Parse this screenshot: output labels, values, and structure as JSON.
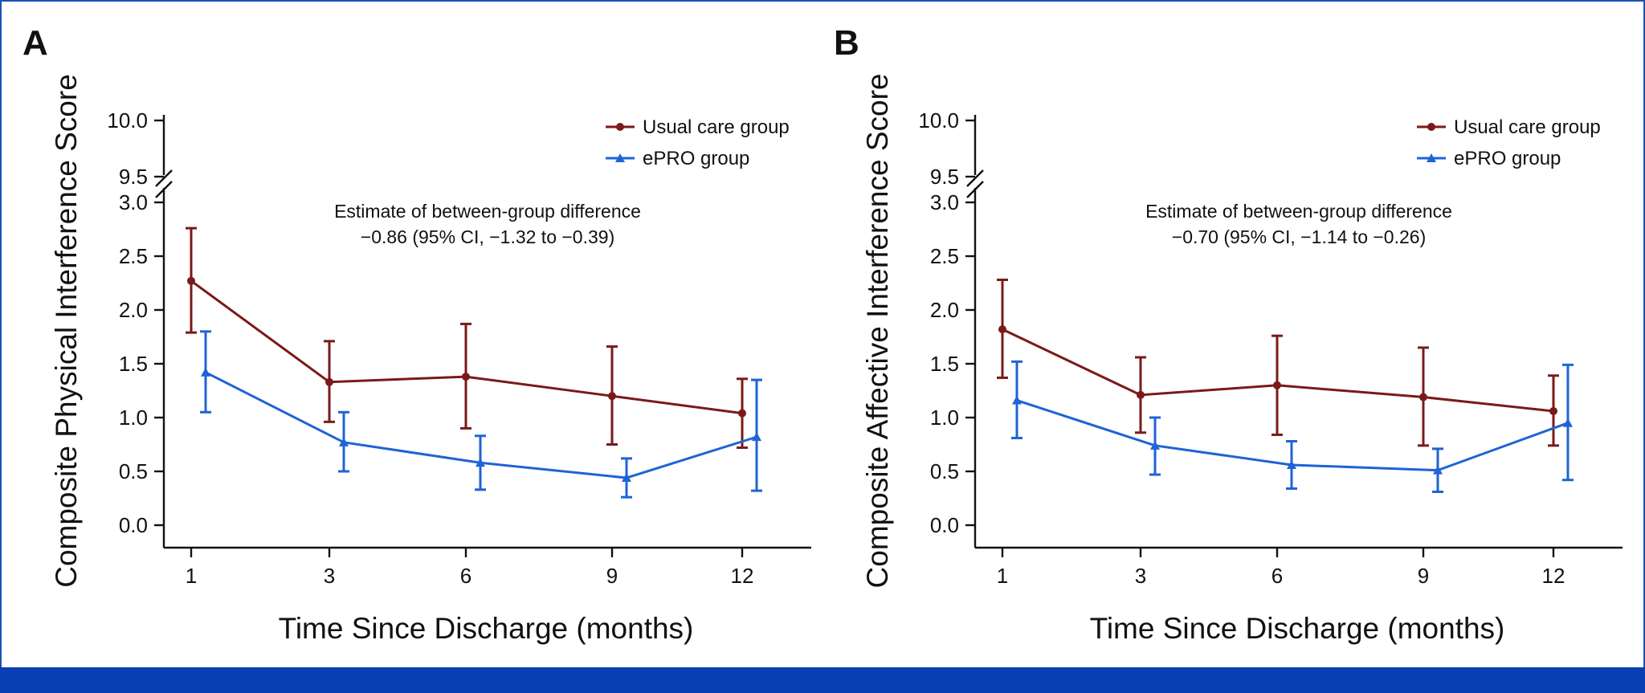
{
  "chart_data": [
    {
      "type": "line",
      "panel_label": "A",
      "ylabel": "Composite Physical Interference Score",
      "xlabel": "Time Since Discharge (months)",
      "x": [
        1,
        3,
        6,
        9,
        12
      ],
      "x_tick_labels": [
        "1",
        "3",
        "6",
        "9",
        "12"
      ],
      "y_tick_labels_lower": [
        "0.0",
        "0.5",
        "1.0",
        "1.5",
        "2.0",
        "2.5",
        "3.0"
      ],
      "y_tick_labels_upper": [
        "9.5",
        "10.0"
      ],
      "ylim": [
        0,
        10
      ],
      "axis_break": [
        3.0,
        9.5
      ],
      "legend_position": "top-right",
      "annotation": [
        "Estimate of between-group difference",
        "−0.86 (95% CI, −1.32 to −0.39)"
      ],
      "series": [
        {
          "name": "Usual care group",
          "color": "#7a1a1a",
          "marker": "circle",
          "values": [
            2.27,
            1.33,
            1.38,
            1.2,
            1.04
          ],
          "ci_low": [
            1.79,
            0.96,
            0.9,
            0.75,
            0.72
          ],
          "ci_high": [
            2.76,
            1.71,
            1.87,
            1.66,
            1.36
          ]
        },
        {
          "name": "ePRO group",
          "color": "#1f63d6",
          "marker": "triangle",
          "values": [
            1.42,
            0.77,
            0.58,
            0.44,
            0.82
          ],
          "ci_low": [
            1.05,
            0.5,
            0.33,
            0.26,
            0.32
          ],
          "ci_high": [
            1.8,
            1.05,
            0.83,
            0.62,
            1.35
          ]
        }
      ]
    },
    {
      "type": "line",
      "panel_label": "B",
      "ylabel": "Composite Affective Interference Score",
      "xlabel": "Time Since Discharge (months)",
      "x": [
        1,
        3,
        6,
        9,
        12
      ],
      "x_tick_labels": [
        "1",
        "3",
        "6",
        "9",
        "12"
      ],
      "y_tick_labels_lower": [
        "0.0",
        "0.5",
        "1.0",
        "1.5",
        "2.0",
        "2.5",
        "3.0"
      ],
      "y_tick_labels_upper": [
        "9.5",
        "10.0"
      ],
      "ylim": [
        0,
        10
      ],
      "axis_break": [
        3.0,
        9.5
      ],
      "legend_position": "top-right",
      "annotation": [
        "Estimate of between-group difference",
        "−0.70 (95% CI, −1.14 to −0.26)"
      ],
      "series": [
        {
          "name": "Usual care group",
          "color": "#7a1a1a",
          "marker": "circle",
          "values": [
            1.82,
            1.21,
            1.3,
            1.19,
            1.06
          ],
          "ci_low": [
            1.37,
            0.86,
            0.84,
            0.74,
            0.74
          ],
          "ci_high": [
            2.28,
            1.56,
            1.76,
            1.65,
            1.39
          ]
        },
        {
          "name": "ePRO group",
          "color": "#1f63d6",
          "marker": "triangle",
          "values": [
            1.16,
            0.74,
            0.56,
            0.51,
            0.95
          ],
          "ci_low": [
            0.81,
            0.47,
            0.34,
            0.31,
            0.42
          ],
          "ci_high": [
            1.52,
            1.0,
            0.78,
            0.71,
            1.49
          ]
        }
      ]
    }
  ]
}
